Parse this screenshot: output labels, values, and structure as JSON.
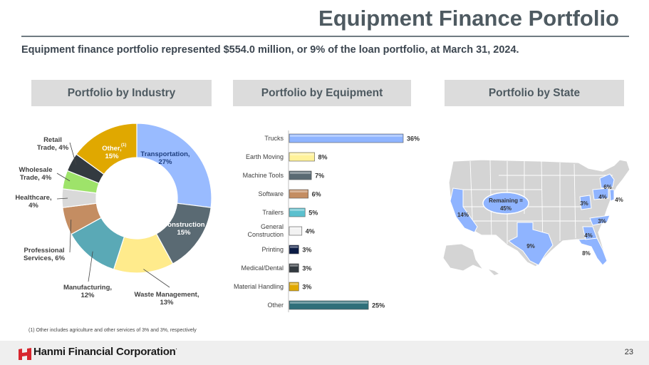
{
  "header": {
    "title": "Equipment Finance Portfolio",
    "subtitle": "Equipment finance portfolio represented $554.0 million, or 9% of the loan portfolio, at March 31, 2024."
  },
  "sections": {
    "industry": "Portfolio by Industry",
    "equipment": "Portfolio by Equipment",
    "state": "Portfolio by State"
  },
  "chart_data": [
    {
      "type": "pie",
      "title": "Portfolio by Industry",
      "slices": [
        {
          "label": "Transportation,",
          "value_label": "27%",
          "value": 27,
          "color": "#99bbff"
        },
        {
          "label": "Construction",
          "value_label": "15%",
          "value": 15,
          "color": "#5a6a73"
        },
        {
          "label": "Waste Management,",
          "value_label": "13%",
          "value": 13,
          "color": "#ffeb8c"
        },
        {
          "label": "Manufacturing,",
          "value_label": "12%",
          "value": 12,
          "color": "#5aa9b6"
        },
        {
          "label": "Professional Services, 6%",
          "value": 6,
          "color": "#c48d62"
        },
        {
          "label": "Healthcare, 4%",
          "value": 4,
          "color": "#d9d9d9"
        },
        {
          "label": "Wholesale Trade, 4%",
          "value": 4,
          "color": "#9ee36a"
        },
        {
          "label": "Retail Trade, 4%",
          "value": 4,
          "color": "#333a40"
        },
        {
          "label": "Other,",
          "value_label": "15%",
          "value": 15,
          "color": "#e0a800",
          "sup": "(1)"
        }
      ]
    },
    {
      "type": "bar",
      "title": "Portfolio by Equipment",
      "orientation": "horizontal",
      "categories": [
        "Trucks",
        "Earth Moving",
        "Machine Tools",
        "Software",
        "Trailers",
        "General Construction",
        "Printing",
        "Medical/Dental",
        "Material Handling",
        "Other"
      ],
      "values": [
        36,
        8,
        7,
        6,
        5,
        4,
        3,
        3,
        3,
        25
      ],
      "value_labels": [
        "36%",
        "8%",
        "7%",
        "6%",
        "5%",
        "4%",
        "3%",
        "3%",
        "3%",
        "25%"
      ],
      "colors": [
        "#8fb4ff",
        "#fff29a",
        "#5a6a73",
        "#c48d62",
        "#5bc0ce",
        "#f2f2f2",
        "#0b1b44",
        "#333a40",
        "#e0a800",
        "#2f6f7a"
      ],
      "xlim": [
        0,
        40
      ]
    },
    {
      "type": "map",
      "title": "Portfolio by State",
      "remaining_label": "Remaining =",
      "remaining_value": "45%",
      "states": [
        {
          "state": "CA",
          "value": "14%"
        },
        {
          "state": "TX",
          "value": "9%"
        },
        {
          "state": "FL",
          "value": "8%"
        },
        {
          "state": "GA",
          "value": "4%"
        },
        {
          "state": "NC",
          "value": "3%"
        },
        {
          "state": "OH",
          "value": "3%"
        },
        {
          "state": "PA",
          "value": "4%"
        },
        {
          "state": "NY",
          "value": "6%"
        },
        {
          "state": "NJ",
          "value": "4%"
        }
      ],
      "highlight_color": "#8fb4ff",
      "base_color": "#d4d4d4"
    }
  ],
  "footnote": "(1)    Other includes agriculture and other services of 3% and 3%, respectively",
  "footer": {
    "company": "Hanmi Financial Corporation",
    "trademark": ".",
    "page": "23"
  }
}
